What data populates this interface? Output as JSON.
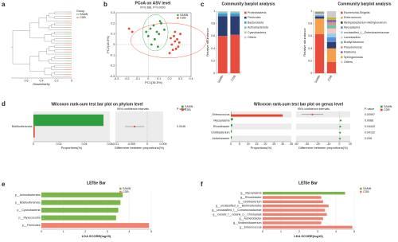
{
  "chart_data": [
    {
      "type": "dendrogram",
      "panel": "a",
      "title": "Hierarchical clustering tree on ASV level",
      "xlabel": "Dissimilarity",
      "xlim": [
        0.8,
        0
      ],
      "xticks": [
        0.6,
        0.4,
        0.2,
        0
      ],
      "legend_title": "Group",
      "series": [
        {
          "name": "SAMN",
          "color": "#2e9e3f"
        },
        {
          "name": "CDB",
          "color": "#e8442c"
        }
      ]
    },
    {
      "type": "scatter",
      "panel": "b",
      "title": "PCoA on ASV level",
      "subtitle": "R=0.388, P=0.0003",
      "xlabel": "PC1(36.5%)",
      "ylabel": "PC2(18.9%)",
      "xlim": [
        -0.3,
        0.4
      ],
      "xticks": [
        -0.3,
        -0.2,
        -0.1,
        0,
        0.1,
        0.2,
        0.3,
        0.4
      ],
      "ylim": [
        -0.3,
        0.3
      ],
      "yticks": [
        -0.3,
        -0.2,
        -0.1,
        0,
        0.1,
        0.2,
        0.3
      ],
      "series": [
        {
          "name": "SAMN",
          "color": "#2e9e3f",
          "x": [
            0.02,
            0.05,
            0.08,
            0.1,
            0.12,
            0.06,
            0.0,
            0.15,
            0.03,
            0.09,
            -0.02,
            0.11
          ],
          "y": [
            0.15,
            0.18,
            0.12,
            0.1,
            0.2,
            0.05,
            0.08,
            0.14,
            0.0,
            -0.02,
            0.12,
            0.22
          ]
        },
        {
          "name": "CDB",
          "color": "#e8442c",
          "x": [
            0.22,
            0.25,
            0.28,
            0.24,
            0.27,
            0.3,
            0.23,
            0.26,
            0.21,
            0.29,
            -0.15,
            -0.18,
            0.2,
            0.25
          ],
          "y": [
            0.0,
            0.03,
            -0.02,
            0.08,
            0.05,
            0.1,
            -0.05,
            -0.04,
            0.06,
            0.02,
            0.12,
            0.15,
            -0.08,
            0.12
          ]
        }
      ]
    },
    {
      "type": "stacked",
      "panel": "c",
      "title": "Community barplot analysis",
      "ylabel": "Relative abundance",
      "categories": [
        "SAMN",
        "CDB"
      ],
      "ylim": [
        0,
        1
      ],
      "yticks": [
        0,
        0.2,
        0.4,
        0.6,
        0.8,
        1
      ],
      "series": [
        {
          "name": "Proteobacteria",
          "color": "#e74c3c",
          "values": [
            0.6,
            0.62
          ]
        },
        {
          "name": "Firmicutes",
          "color": "#2c3e70",
          "values": [
            0.32,
            0.3
          ]
        },
        {
          "name": "Bacteroidota",
          "color": "#3a9ad9",
          "values": [
            0.04,
            0.04
          ]
        },
        {
          "name": "Actinobacteriota",
          "color": "#6fc5c0",
          "values": [
            0.02,
            0.02
          ]
        },
        {
          "name": "Cyanobacteria",
          "color": "#a8d08d",
          "values": [
            0.01,
            0.01
          ]
        },
        {
          "name": "Others",
          "color": "#cccccc",
          "values": [
            0.01,
            0.01
          ]
        }
      ]
    },
    {
      "type": "stacked",
      "title": "Community barplot analysis",
      "ylabel": "Relative abundance",
      "categories": [
        "SAMN",
        "CDB"
      ],
      "ylim": [
        0,
        1
      ],
      "yticks": [
        0,
        0.2,
        0.4,
        0.6,
        0.8,
        1
      ],
      "series": [
        {
          "name": "Escherichia-Shigella",
          "color": "#e74c3c",
          "values": [
            0.63,
            0.18
          ]
        },
        {
          "name": "Enterococcus",
          "color": "#f5a04a",
          "values": [
            0.25,
            0.22
          ]
        },
        {
          "name": "Methylobacterium-Methylorubrum",
          "color": "#2c3e70",
          "values": [
            0.03,
            0.1
          ]
        },
        {
          "name": "Mycoplasma",
          "color": "#5b8fd6",
          "values": [
            0.02,
            0.08
          ]
        },
        {
          "name": "unclassified_f__Enterobacteriaceae",
          "color": "#8fd3e8",
          "values": [
            0.01,
            0.06
          ]
        },
        {
          "name": "Lactobacillus",
          "color": "#f7c6c7",
          "values": [
            0.01,
            0.08
          ]
        },
        {
          "name": "Bradyrhizobium",
          "color": "#6fc5a0",
          "values": [
            0.01,
            0.05
          ]
        },
        {
          "name": "Pseudomonas",
          "color": "#c49c94",
          "values": [
            0.01,
            0.05
          ]
        },
        {
          "name": "Ralstonia",
          "color": "#9467bd",
          "values": [
            0.01,
            0.04
          ]
        },
        {
          "name": "Sphingomonas",
          "color": "#bcbd22",
          "values": [
            0.01,
            0.04
          ]
        },
        {
          "name": "Others",
          "color": "#cccccc",
          "values": [
            0.01,
            0.1
          ]
        }
      ]
    },
    {
      "type": "wilcoxon",
      "panel": "d",
      "title": "Wilcoxon rank-sum test bar plot on phylum level",
      "categories": [
        "Bdellovibrionota"
      ],
      "xlabel": "Proportions(%)",
      "xlim": [
        0,
        0.06
      ],
      "xticks": [
        0,
        0.02,
        0.04,
        0.06
      ],
      "series": [
        {
          "name": "SAMN",
          "color": "#2e9e3f",
          "values": [
            0.055
          ]
        },
        {
          "name": "CDB",
          "color": "#e8442c",
          "values": [
            0.001
          ]
        }
      ],
      "ci_title": "95% confidence intervals",
      "diff_xlabel": "Difference between proportions(%)",
      "diff_xlim": [
        -0.01,
        0.005
      ],
      "diff_xticks": [
        -0.01,
        -0.005,
        0,
        0.005
      ],
      "diff": {
        "values": [
          -0.004
        ],
        "lower": [
          -0.007
        ],
        "upper": [
          -0.001
        ]
      },
      "pvalue_label": "P-value",
      "pvalues": [
        0.0046
      ]
    },
    {
      "type": "wilcoxon",
      "title": "Wilcoxon rank-sum test bar plot on genus level",
      "categories": [
        "Enterococcus",
        "Mycoplasma",
        "Rhodobacter",
        "Undibacterium",
        "Acinetobacter"
      ],
      "xlabel": "Proportions(%)",
      "xlim": [
        0,
        35
      ],
      "xticks": [
        0,
        5,
        10,
        15,
        20,
        25,
        30,
        35
      ],
      "series": [
        {
          "name": "SAMN",
          "color": "#2e9e3f",
          "values": [
            0.3,
            1.2,
            0.8,
            0.6,
            0.5
          ]
        },
        {
          "name": "CDB",
          "color": "#e8442c",
          "values": [
            30,
            0.1,
            0.05,
            0.02,
            0.05
          ]
        }
      ],
      "ci_title": "95% confidence intervals",
      "diff_xlabel": "Difference between proportions(%)",
      "diff_xlim": [
        -40,
        10
      ],
      "diff_xticks": [
        -40,
        -30,
        -20,
        -10,
        0,
        10
      ],
      "diff": {
        "values": [
          -25,
          1.1,
          0.75,
          0.58,
          0.45
        ],
        "lower": [
          -35,
          0.3,
          0.2,
          0.1,
          0.05
        ],
        "upper": [
          -15,
          2,
          1.3,
          1.05,
          0.85
        ]
      },
      "pvalue_label": "P-value",
      "pvalues": [
        0.00097,
        0.0086,
        0.04443,
        0.04132,
        0.038
      ]
    },
    {
      "type": "lefse",
      "panel": "e",
      "title": "LEfSe Bar",
      "xlabel": "LDA SCORE(log10)",
      "xlim": [
        0,
        5
      ],
      "xticks": [
        0,
        1,
        2,
        3,
        4,
        5
      ],
      "categories": [
        "p__Actinobacteriota",
        "p__Bdellovibrionota",
        "p__Cyanobacteria",
        "p__Myxococcota",
        "p__Firmicutes"
      ],
      "series": [
        {
          "name": "SAMN",
          "color": "#7ab648",
          "values": [
            3.7,
            3.6,
            3.5,
            3.4,
            null
          ]
        },
        {
          "name": "CDB",
          "color": "#f08070",
          "values": [
            null,
            null,
            null,
            null,
            4.9
          ]
        }
      ]
    },
    {
      "type": "lefse",
      "panel": "f",
      "title": "LEfSe Bar",
      "xlabel": "LDA SCORE(log10)",
      "xlim": [
        0,
        5
      ],
      "xticks": [
        0,
        1,
        2,
        3,
        4,
        5
      ],
      "categories": [
        "g__Mycoplasma",
        "g__Rhodobacter",
        "g__Undibacterium",
        "g__unclassified_o__Burkholderiales",
        "g__unclassified_f__Comamonadaceae",
        "g__norank_f__norank_o__Chloroplast",
        "g__Acinetobacter",
        "g__Sediminibacterium",
        "g__Enterococcus"
      ],
      "series": [
        {
          "name": "SAMN",
          "color": "#7ab648",
          "values": [
            4.5,
            null,
            null,
            null,
            null,
            null,
            null,
            null,
            null
          ]
        },
        {
          "name": "CDB",
          "color": "#f08070",
          "values": [
            null,
            3.2,
            3.3,
            3.6,
            3.4,
            3.5,
            3.3,
            3.2,
            4.9
          ]
        }
      ]
    }
  ]
}
